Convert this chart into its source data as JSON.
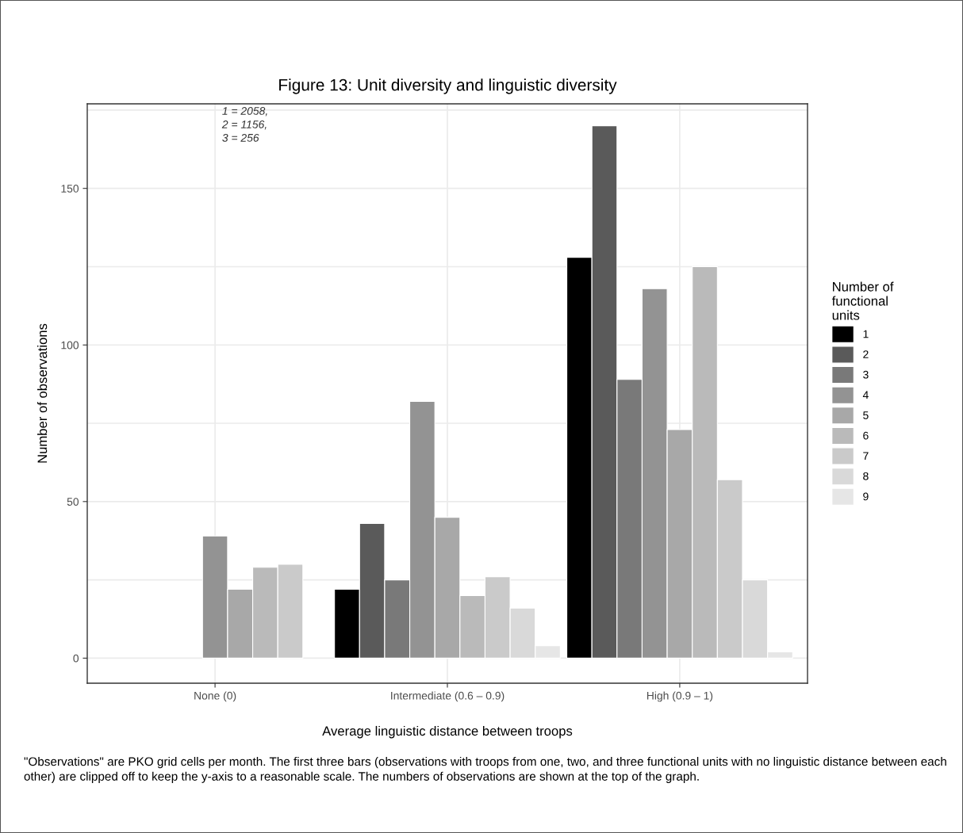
{
  "chart_data": {
    "type": "bar",
    "title": "Figure 13: Unit diversity and linguistic diversity",
    "xlabel": "Average linguistic distance between troops",
    "ylabel": "Number of observations",
    "legend_title": "Number of\nfunctional\nunits",
    "categories": [
      "None (0)",
      "Intermediate (0.6 – 0.9)",
      "High (0.9 – 1)"
    ],
    "series": [
      {
        "name": "1",
        "color": "#000000",
        "values": [
          null,
          22,
          128
        ]
      },
      {
        "name": "2",
        "color": "#5a5a5a",
        "values": [
          null,
          43,
          170
        ]
      },
      {
        "name": "3",
        "color": "#797979",
        "values": [
          null,
          25,
          89
        ]
      },
      {
        "name": "4",
        "color": "#939393",
        "values": [
          39,
          82,
          118
        ]
      },
      {
        "name": "5",
        "color": "#a8a8a8",
        "values": [
          22,
          45,
          73
        ]
      },
      {
        "name": "6",
        "color": "#bababa",
        "values": [
          29,
          20,
          125
        ]
      },
      {
        "name": "7",
        "color": "#cacaca",
        "values": [
          30,
          26,
          57
        ]
      },
      {
        "name": "8",
        "color": "#d9d9d9",
        "values": [
          null,
          16,
          25
        ]
      },
      {
        "name": "9",
        "color": "#e6e6e6",
        "values": [
          null,
          4,
          2
        ]
      }
    ],
    "ylim": [
      -8,
      177
    ],
    "yticks": [
      0,
      {
        "value": 25,
        "label": null
      },
      50,
      {
        "value": 75,
        "label": null
      },
      100,
      {
        "value": 125,
        "label": null
      },
      150,
      {
        "value": 175,
        "label": null
      }
    ],
    "grid": true,
    "legend": "right",
    "annotations": [
      "1 = 2058,\n2 = 1156,\n3 = 256",
      "\"Observations\" are PKO grid cells per month. The first three bars (observations with troops from one, two, and three functional units with no linguistic distance between each other) are clipped off to keep the y-axis to a reasonable scale. The numbers of observations are shown at the top of the graph."
    ]
  }
}
